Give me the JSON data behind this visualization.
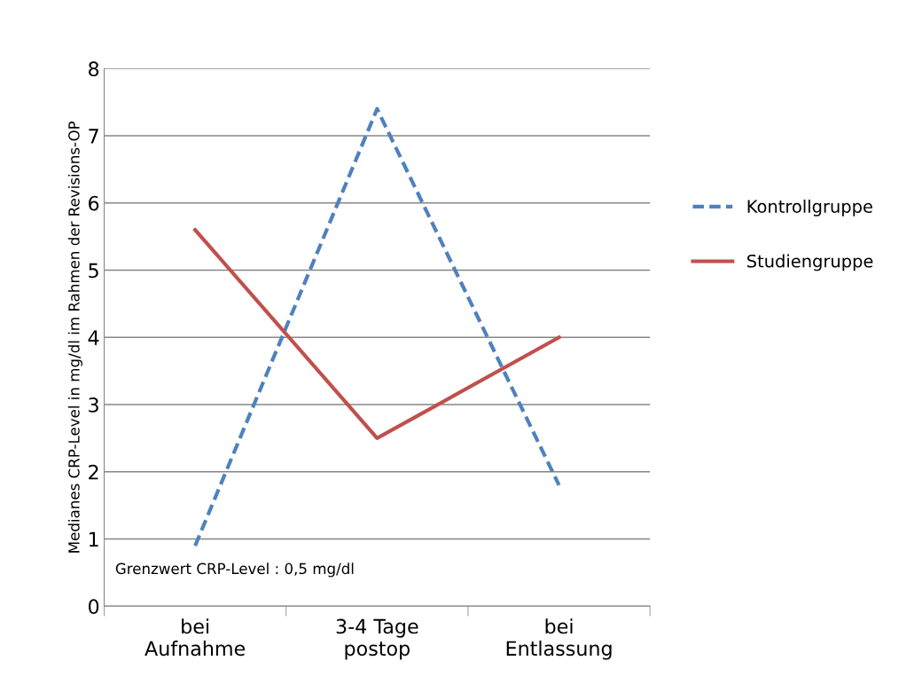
{
  "chart_data": {
    "type": "line",
    "ylabel": "Medianes CRP-Level in mg/dl im Rahmen der Revisions-OP",
    "categories": [
      "bei\nAufnahme",
      "3-4 Tage\npostop",
      "bei\nEntlassung"
    ],
    "series": [
      {
        "name": "Kontrollgruppe",
        "color": "#4f81bd",
        "values": [
          0.9,
          7.4,
          1.8
        ],
        "line_style": "dashed"
      },
      {
        "name": "Studiengruppe",
        "color": "#c0504d",
        "values": [
          5.6,
          2.5,
          4.0
        ],
        "line_style": "solid"
      }
    ],
    "ylim": [
      0,
      8
    ],
    "yticks": [
      0,
      1,
      2,
      3,
      4,
      5,
      6,
      7,
      8
    ],
    "grid": "y",
    "legend": "right",
    "marker": "none",
    "annotations": [
      "Grenzwert CRP-Level : 0,5 mg/dl"
    ]
  }
}
